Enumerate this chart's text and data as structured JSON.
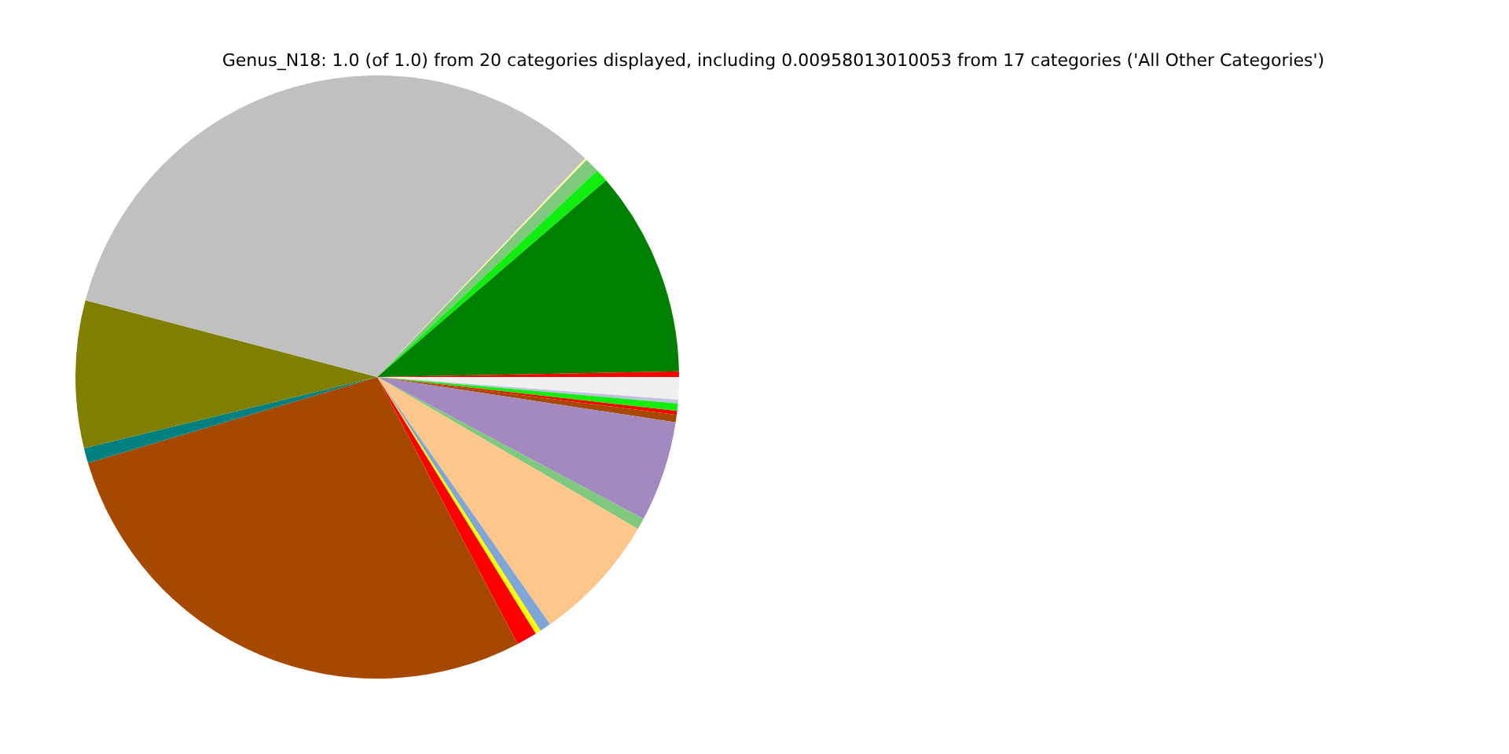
{
  "chart_data": {
    "type": "pie",
    "title": "Genus_N18: 1.0 (of 1.0) from 20 categories displayed, including 0.00958013010053 from 17 categories ('All Other Categories')",
    "categories": [
      null,
      null,
      null,
      null,
      null,
      null,
      null,
      null,
      null,
      null,
      null,
      null,
      null,
      null,
      null,
      null,
      null,
      null,
      null,
      null
    ],
    "values": [
      0.3,
      11.0,
      0.7,
      0.8,
      0.1,
      33.0,
      7.9,
      0.8,
      28.1,
      1.1,
      0.3,
      0.6,
      6.9,
      0.6,
      5.4,
      0.4,
      0.2,
      0.4,
      0.2,
      1.2
    ],
    "colors": [
      "#ff0000",
      "#008000",
      "#10ee10",
      "#7fc97f",
      "#ffff99",
      "#c0c0c0",
      "#808000",
      "#008080",
      "#a64800",
      "#ff0000",
      "#ffff00",
      "#7fa6d6",
      "#fdc78b",
      "#7fc97f",
      "#a389bf",
      "#a64800",
      "#ff0000",
      "#10ee10",
      "#c0c0e0",
      "#f0f0f0"
    ],
    "legend": false
  }
}
